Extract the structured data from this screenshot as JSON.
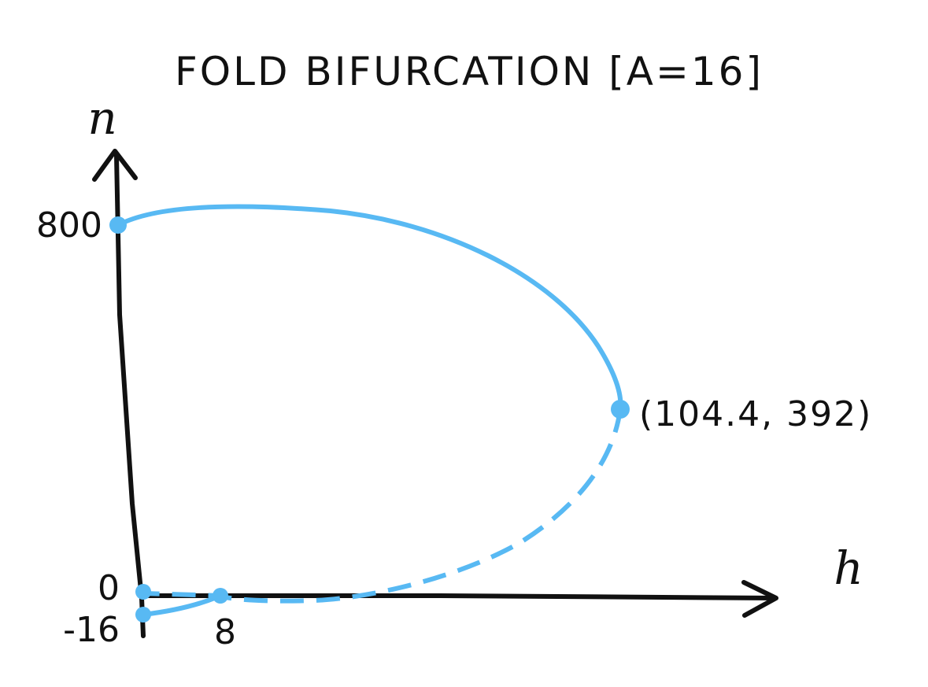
{
  "title": "FOLD BIFURCATION [A=16]",
  "axes": {
    "y_label": "n",
    "x_label": "h"
  },
  "ticks": {
    "y": [
      "800",
      "0",
      "-16"
    ],
    "x": [
      "8"
    ]
  },
  "annotation": "(104.4, 392)",
  "colors": {
    "curve": "#58b9f3",
    "axes": "#111111",
    "background": "#ffffff"
  },
  "curve": {
    "stable_branch": "solid",
    "unstable_branch": "dashed"
  },
  "points": [
    {
      "h": 0,
      "n": 800
    },
    {
      "h": 104.4,
      "n": 392
    },
    {
      "h": 0,
      "n": 0
    },
    {
      "h": 0,
      "n": -16
    },
    {
      "h": 8,
      "n": 0
    }
  ]
}
